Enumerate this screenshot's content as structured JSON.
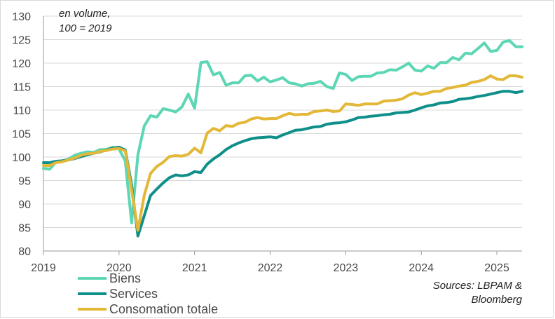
{
  "chart_data": {
    "type": "line",
    "annotation": [
      "en volume,",
      "100 = 2019"
    ],
    "source": [
      "Sources: LBPAM &",
      "Bloomberg"
    ],
    "ylim": [
      80,
      130
    ],
    "yticks": [
      80,
      85,
      90,
      95,
      100,
      105,
      110,
      115,
      120,
      125,
      130
    ],
    "xlim": [
      "2019-01",
      "2025-05"
    ],
    "xticks": [
      "2019",
      "2020",
      "2021",
      "2022",
      "2023",
      "2024",
      "2025"
    ],
    "grid": "horizontal",
    "legend_position": "bottom-left",
    "x": [
      "2019-01",
      "2019-02",
      "2019-03",
      "2019-04",
      "2019-05",
      "2019-06",
      "2019-07",
      "2019-08",
      "2019-09",
      "2019-10",
      "2019-11",
      "2019-12",
      "2020-01",
      "2020-02",
      "2020-03",
      "2020-04",
      "2020-05",
      "2020-06",
      "2020-07",
      "2020-08",
      "2020-09",
      "2020-10",
      "2020-11",
      "2020-12",
      "2021-01",
      "2021-02",
      "2021-03",
      "2021-04",
      "2021-05",
      "2021-06",
      "2021-07",
      "2021-08",
      "2021-09",
      "2021-10",
      "2021-11",
      "2021-12",
      "2022-01",
      "2022-02",
      "2022-03",
      "2022-04",
      "2022-05",
      "2022-06",
      "2022-07",
      "2022-08",
      "2022-09",
      "2022-10",
      "2022-11",
      "2022-12",
      "2023-01",
      "2023-02",
      "2023-03",
      "2023-04",
      "2023-05",
      "2023-06",
      "2023-07",
      "2023-08",
      "2023-09",
      "2023-10",
      "2023-11",
      "2023-12",
      "2024-01",
      "2024-02",
      "2024-03",
      "2024-04",
      "2024-05",
      "2024-06",
      "2024-07",
      "2024-08",
      "2024-09",
      "2024-10",
      "2024-11",
      "2024-12",
      "2025-01",
      "2025-02",
      "2025-03",
      "2025-04",
      "2025-05"
    ],
    "series": [
      {
        "name": "Biens",
        "color": "#5cd6b4",
        "values": [
          97.6,
          97.4,
          99.0,
          99.1,
          99.6,
          100.4,
          100.8,
          101.1,
          101.0,
          101.6,
          101.6,
          102.1,
          101.7,
          99.2,
          86.0,
          100.5,
          106.6,
          108.8,
          108.5,
          110.3,
          110.0,
          109.6,
          110.7,
          113.4,
          110.4,
          120.1,
          120.3,
          117.5,
          118.0,
          115.3,
          115.8,
          115.8,
          117.3,
          117.4,
          116.2,
          117.0,
          116.0,
          116.4,
          116.9,
          115.8,
          115.6,
          115.1,
          115.6,
          115.7,
          116.1,
          115.0,
          114.6,
          117.9,
          117.6,
          116.3,
          117.1,
          117.2,
          117.2,
          117.9,
          118.0,
          118.6,
          118.5,
          119.2,
          120.0,
          118.5,
          118.3,
          119.4,
          118.9,
          120.1,
          120.1,
          121.2,
          120.7,
          122.1,
          122.0,
          123.1,
          124.3,
          122.5,
          122.7,
          124.5,
          124.8,
          123.5,
          123.5
        ]
      },
      {
        "name": "Services",
        "color": "#0f8f8a",
        "values": [
          98.8,
          98.8,
          99.1,
          99.2,
          99.4,
          99.7,
          100.1,
          100.5,
          100.8,
          101.1,
          101.5,
          101.9,
          102.1,
          101.5,
          94.0,
          83.2,
          87.5,
          91.8,
          93.2,
          94.5,
          95.6,
          96.2,
          96.0,
          96.2,
          96.9,
          96.7,
          98.5,
          99.6,
          100.5,
          101.6,
          102.4,
          103.0,
          103.5,
          103.9,
          104.1,
          104.2,
          104.3,
          104.1,
          104.7,
          105.2,
          105.7,
          105.8,
          106.1,
          106.4,
          106.5,
          107.0,
          107.2,
          107.3,
          107.5,
          107.9,
          108.4,
          108.5,
          108.7,
          108.8,
          109.0,
          109.1,
          109.4,
          109.5,
          109.6,
          110.0,
          110.5,
          110.9,
          111.1,
          111.5,
          111.6,
          111.8,
          112.3,
          112.4,
          112.6,
          112.9,
          113.1,
          113.4,
          113.7,
          114.0,
          114.0,
          113.7,
          114.0
        ]
      },
      {
        "name": "Consomation totale",
        "color": "#e3b838",
        "values": [
          98.2,
          98.2,
          98.8,
          99.0,
          99.4,
          99.8,
          100.4,
          100.7,
          100.8,
          101.2,
          101.4,
          101.7,
          101.8,
          101.3,
          93.0,
          84.4,
          91.8,
          96.5,
          98.0,
          98.9,
          100.1,
          100.3,
          100.2,
          100.6,
          101.9,
          100.9,
          105.1,
          106.1,
          105.6,
          106.7,
          106.5,
          107.2,
          107.4,
          108.1,
          108.4,
          108.1,
          108.2,
          108.2,
          108.8,
          109.3,
          109.0,
          109.1,
          109.1,
          109.7,
          109.8,
          110.0,
          109.7,
          109.8,
          111.3,
          111.2,
          111.0,
          111.3,
          111.3,
          111.3,
          111.9,
          112.0,
          112.1,
          112.4,
          113.2,
          113.7,
          113.3,
          113.6,
          114.0,
          114.0,
          114.6,
          114.8,
          115.1,
          115.3,
          115.9,
          116.1,
          116.5,
          117.3,
          116.6,
          116.5,
          117.3,
          117.3,
          117.0
        ]
      }
    ]
  }
}
